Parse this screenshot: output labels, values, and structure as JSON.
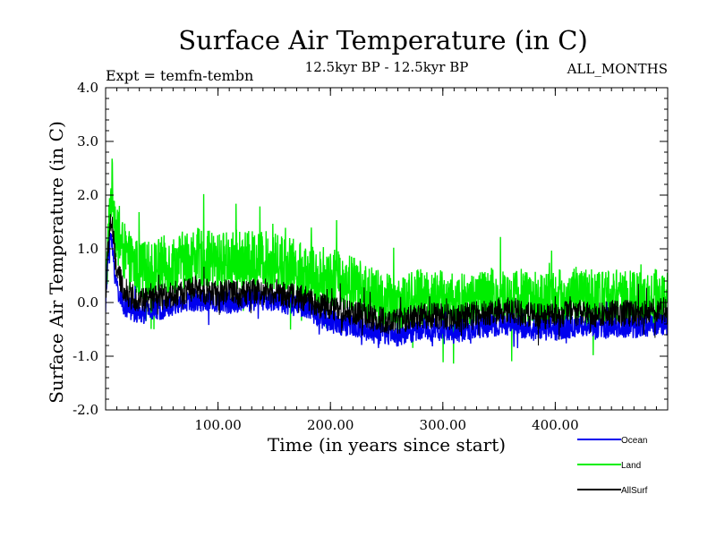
{
  "chart_data": {
    "type": "line",
    "title": "Surface Air Temperature (in C)",
    "subtitle_left": "Expt = temfn-tembn",
    "subtitle_center": "12.5kyr BP - 12.5kyr BP",
    "subtitle_right": "ALL_MONTHS",
    "xlabel": "Time (in years since start)",
    "ylabel": "Surface Air Temperature (in C)",
    "xlim": [
      0,
      500
    ],
    "ylim": [
      -2.0,
      4.0
    ],
    "x_ticks": [
      {
        "value": 100,
        "label": "100.00"
      },
      {
        "value": 200,
        "label": "200.00"
      },
      {
        "value": 300,
        "label": "300.00"
      },
      {
        "value": 400,
        "label": "400.00"
      }
    ],
    "y_ticks": [
      {
        "value": 4.0,
        "label": "4.0"
      },
      {
        "value": 3.0,
        "label": "3.0"
      },
      {
        "value": 2.0,
        "label": "2.0"
      },
      {
        "value": 1.0,
        "label": "1.0"
      },
      {
        "value": 0.0,
        "label": "0.0"
      },
      {
        "value": -1.0,
        "label": "-1.0"
      },
      {
        "value": -2.0,
        "label": "-2.0"
      }
    ],
    "grid": false,
    "legend_position": "bottom-right",
    "series": [
      {
        "name": "Land",
        "color": "#00ee00",
        "x": [
          0,
          2,
          4,
          6,
          8,
          10,
          15,
          20,
          30,
          40,
          50,
          60,
          70,
          80,
          90,
          100,
          110,
          120,
          130,
          140,
          150,
          160,
          170,
          180,
          190,
          200,
          210,
          220,
          230,
          240,
          250,
          260,
          270,
          280,
          290,
          300,
          310,
          320,
          330,
          340,
          350,
          360,
          370,
          380,
          390,
          400,
          410,
          420,
          430,
          440,
          450,
          460,
          470,
          480,
          490,
          500
        ],
        "values": [
          0.3,
          1.0,
          1.8,
          2.2,
          1.7,
          1.2,
          1.0,
          0.8,
          0.6,
          0.6,
          0.7,
          0.7,
          0.8,
          0.85,
          0.8,
          0.75,
          0.8,
          0.75,
          0.8,
          0.8,
          0.75,
          0.75,
          0.6,
          0.55,
          0.45,
          0.45,
          0.4,
          0.35,
          0.2,
          0.1,
          0.0,
          0.0,
          0.05,
          0.1,
          0.1,
          0.05,
          0.0,
          0.0,
          0.05,
          0.1,
          0.1,
          0.1,
          0.1,
          0.05,
          0.0,
          0.05,
          0.1,
          0.1,
          0.1,
          0.1,
          0.1,
          0.05,
          0.05,
          0.05,
          0.1,
          0.1
        ],
        "noise_amplitude": 0.55
      },
      {
        "name": "Ocean",
        "color": "#0000ee",
        "x": [
          0,
          2,
          4,
          6,
          8,
          10,
          15,
          20,
          30,
          40,
          50,
          60,
          70,
          80,
          90,
          100,
          110,
          120,
          130,
          140,
          150,
          160,
          170,
          180,
          190,
          200,
          210,
          220,
          230,
          240,
          250,
          260,
          270,
          280,
          290,
          300,
          310,
          320,
          330,
          340,
          350,
          360,
          370,
          380,
          390,
          400,
          410,
          420,
          430,
          440,
          450,
          460,
          470,
          480,
          490,
          500
        ],
        "values": [
          0.0,
          0.8,
          1.3,
          1.0,
          0.6,
          0.3,
          0.0,
          -0.1,
          -0.2,
          -0.15,
          -0.1,
          -0.05,
          0.0,
          0.05,
          0.05,
          0.0,
          0.0,
          0.0,
          0.05,
          0.05,
          0.05,
          0.0,
          -0.05,
          -0.1,
          -0.25,
          -0.35,
          -0.4,
          -0.45,
          -0.5,
          -0.55,
          -0.6,
          -0.6,
          -0.55,
          -0.5,
          -0.5,
          -0.5,
          -0.55,
          -0.5,
          -0.45,
          -0.45,
          -0.4,
          -0.4,
          -0.45,
          -0.5,
          -0.5,
          -0.5,
          -0.45,
          -0.45,
          -0.45,
          -0.5,
          -0.45,
          -0.45,
          -0.45,
          -0.45,
          -0.4,
          -0.4
        ],
        "noise_amplitude": 0.22
      },
      {
        "name": "AllSurf",
        "color": "#000000",
        "x": [
          0,
          2,
          4,
          6,
          8,
          10,
          15,
          20,
          30,
          40,
          50,
          60,
          70,
          80,
          90,
          100,
          110,
          120,
          130,
          140,
          150,
          160,
          170,
          180,
          190,
          200,
          210,
          220,
          230,
          240,
          250,
          260,
          270,
          280,
          290,
          300,
          310,
          320,
          330,
          340,
          350,
          360,
          370,
          380,
          390,
          400,
          410,
          420,
          430,
          440,
          450,
          460,
          470,
          480,
          490,
          500
        ],
        "values": [
          0.1,
          0.9,
          1.5,
          1.4,
          0.9,
          0.6,
          0.3,
          0.15,
          0.05,
          0.05,
          0.1,
          0.15,
          0.2,
          0.25,
          0.2,
          0.15,
          0.2,
          0.15,
          0.2,
          0.2,
          0.2,
          0.15,
          0.1,
          0.05,
          -0.05,
          -0.1,
          -0.15,
          -0.2,
          -0.25,
          -0.3,
          -0.35,
          -0.35,
          -0.3,
          -0.25,
          -0.25,
          -0.25,
          -0.3,
          -0.25,
          -0.2,
          -0.2,
          -0.15,
          -0.15,
          -0.2,
          -0.25,
          -0.25,
          -0.25,
          -0.2,
          -0.2,
          -0.2,
          -0.25,
          -0.2,
          -0.2,
          -0.2,
          -0.2,
          -0.15,
          -0.15
        ],
        "noise_amplitude": 0.25
      }
    ]
  }
}
